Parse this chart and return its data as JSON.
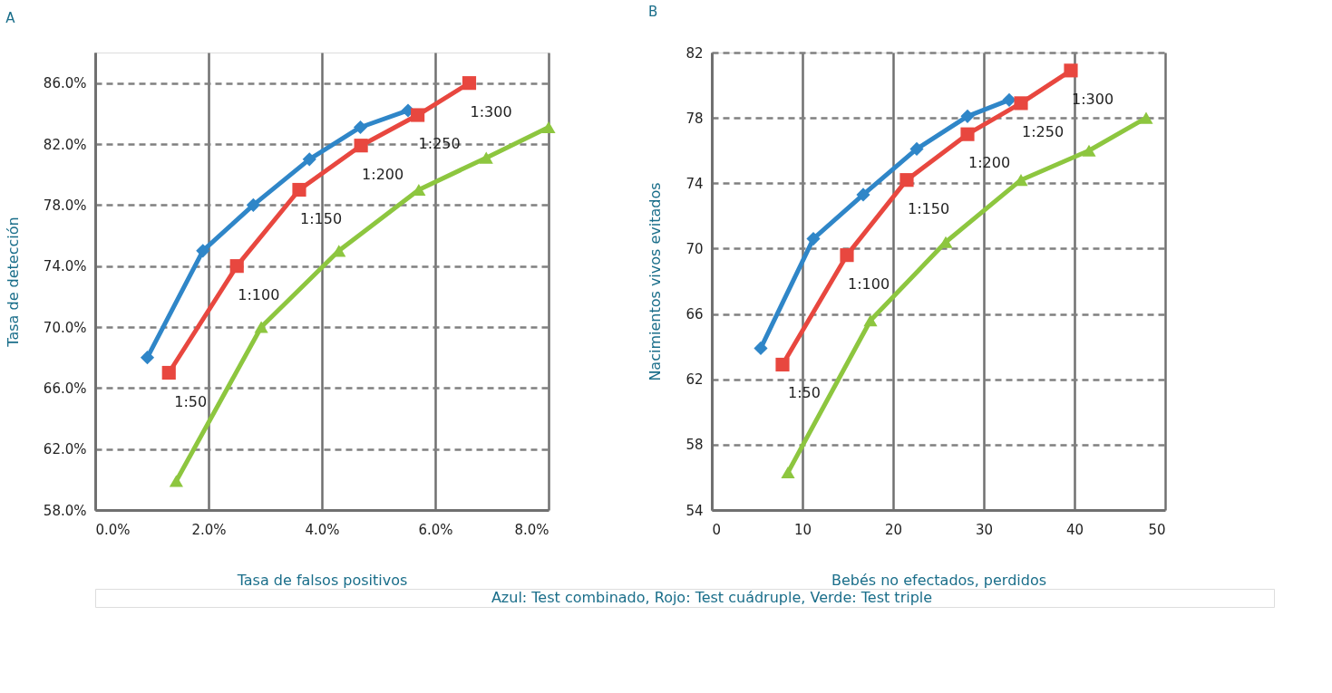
{
  "chart_data": [
    {
      "type": "line",
      "title": "A",
      "xlabel": "Tasa de falsos positivos",
      "ylabel": "Tasa de detección",
      "xlim": [
        0,
        8
      ],
      "xticks": [
        {
          "value": 0,
          "label": "0.0%"
        },
        {
          "value": 2,
          "label": "2.0%"
        },
        {
          "value": 4,
          "label": "4.0%"
        },
        {
          "value": 6,
          "label": "6.0%"
        },
        {
          "value": 8,
          "label": "8.0%"
        }
      ],
      "ylim": [
        58,
        88
      ],
      "yticks": [
        {
          "value": 58,
          "label": "58.0%"
        },
        {
          "value": 62,
          "label": "62.0%"
        },
        {
          "value": 66,
          "label": "66.0%"
        },
        {
          "value": 70,
          "label": "70.0%"
        },
        {
          "value": 74,
          "label": "74.0%"
        },
        {
          "value": 78,
          "label": "78.0%"
        },
        {
          "value": 82,
          "label": "82.0%"
        },
        {
          "value": 86,
          "label": "86.0%"
        }
      ],
      "grid": true,
      "line_style": "solid",
      "series": [
        {
          "color": "#2f86c8",
          "marker": "diamond",
          "x": [
            0.92,
            1.9,
            2.79,
            3.78,
            4.68,
            5.52
          ],
          "values": [
            68.0,
            75.0,
            78.0,
            81.0,
            83.1,
            84.2
          ]
        },
        {
          "color": "#e8473f",
          "marker": "square",
          "x": [
            1.3,
            2.5,
            3.6,
            4.69,
            5.69,
            6.6
          ],
          "values": [
            67.0,
            74.0,
            79.0,
            81.9,
            83.9,
            86.0
          ]
        },
        {
          "color": "#8dc63f",
          "marker": "triangle",
          "x": [
            1.43,
            2.93,
            4.3,
            5.71,
            6.9,
            8.0
          ],
          "values": [
            59.9,
            70.0,
            75.0,
            79.0,
            81.1,
            83.1
          ]
        }
      ],
      "annotations": [
        {
          "text": "1:50",
          "x": 1.3,
          "y": 67.0
        },
        {
          "text": "1:100",
          "x": 2.5,
          "y": 74.0
        },
        {
          "text": "1:150",
          "x": 3.6,
          "y": 79.0
        },
        {
          "text": "1:200",
          "x": 4.69,
          "y": 81.9
        },
        {
          "text": "1:250",
          "x": 5.69,
          "y": 83.9
        },
        {
          "text": "1:300",
          "x": 6.6,
          "y": 86.0
        }
      ]
    },
    {
      "type": "line",
      "title": "B",
      "xlabel": "Bebés no efectados, perdidos",
      "ylabel": "Nacimientos vivos evitados",
      "xlim": [
        0,
        50
      ],
      "xticks": [
        0,
        10,
        20,
        30,
        40,
        50
      ],
      "ylim": [
        54,
        82
      ],
      "yticks": [
        54,
        58,
        62,
        66,
        70,
        74,
        78,
        82
      ],
      "grid": true,
      "line_style": "solid",
      "series": [
        {
          "color": "#2f86c8",
          "marker": "diamond",
          "x": [
            5.4,
            11.2,
            16.7,
            22.6,
            28.2,
            32.8
          ],
          "values": [
            63.9,
            70.6,
            73.3,
            76.1,
            78.1,
            79.1
          ]
        },
        {
          "color": "#e8473f",
          "marker": "square",
          "x": [
            7.8,
            14.9,
            21.5,
            28.2,
            34.1,
            39.6
          ],
          "values": [
            62.9,
            69.6,
            74.2,
            77.0,
            78.9,
            80.9
          ]
        },
        {
          "color": "#8dc63f",
          "marker": "triangle",
          "x": [
            8.4,
            17.5,
            25.8,
            34.1,
            41.6,
            47.9
          ],
          "values": [
            56.3,
            65.6,
            70.4,
            74.2,
            76.0,
            78.0
          ]
        }
      ],
      "annotations": [
        {
          "text": "1:50",
          "x": 7.8,
          "y": 62.9
        },
        {
          "text": "1:100",
          "x": 14.9,
          "y": 69.6
        },
        {
          "text": "1:150",
          "x": 21.5,
          "y": 74.2
        },
        {
          "text": "1:200",
          "x": 28.2,
          "y": 77.0
        },
        {
          "text": "1:250",
          "x": 34.1,
          "y": 78.9
        },
        {
          "text": "1:300",
          "x": 39.6,
          "y": 80.9
        },
        "Azul: Test combinado, Rojo: Test cuádruple, Verde: Test triple"
      ]
    }
  ]
}
